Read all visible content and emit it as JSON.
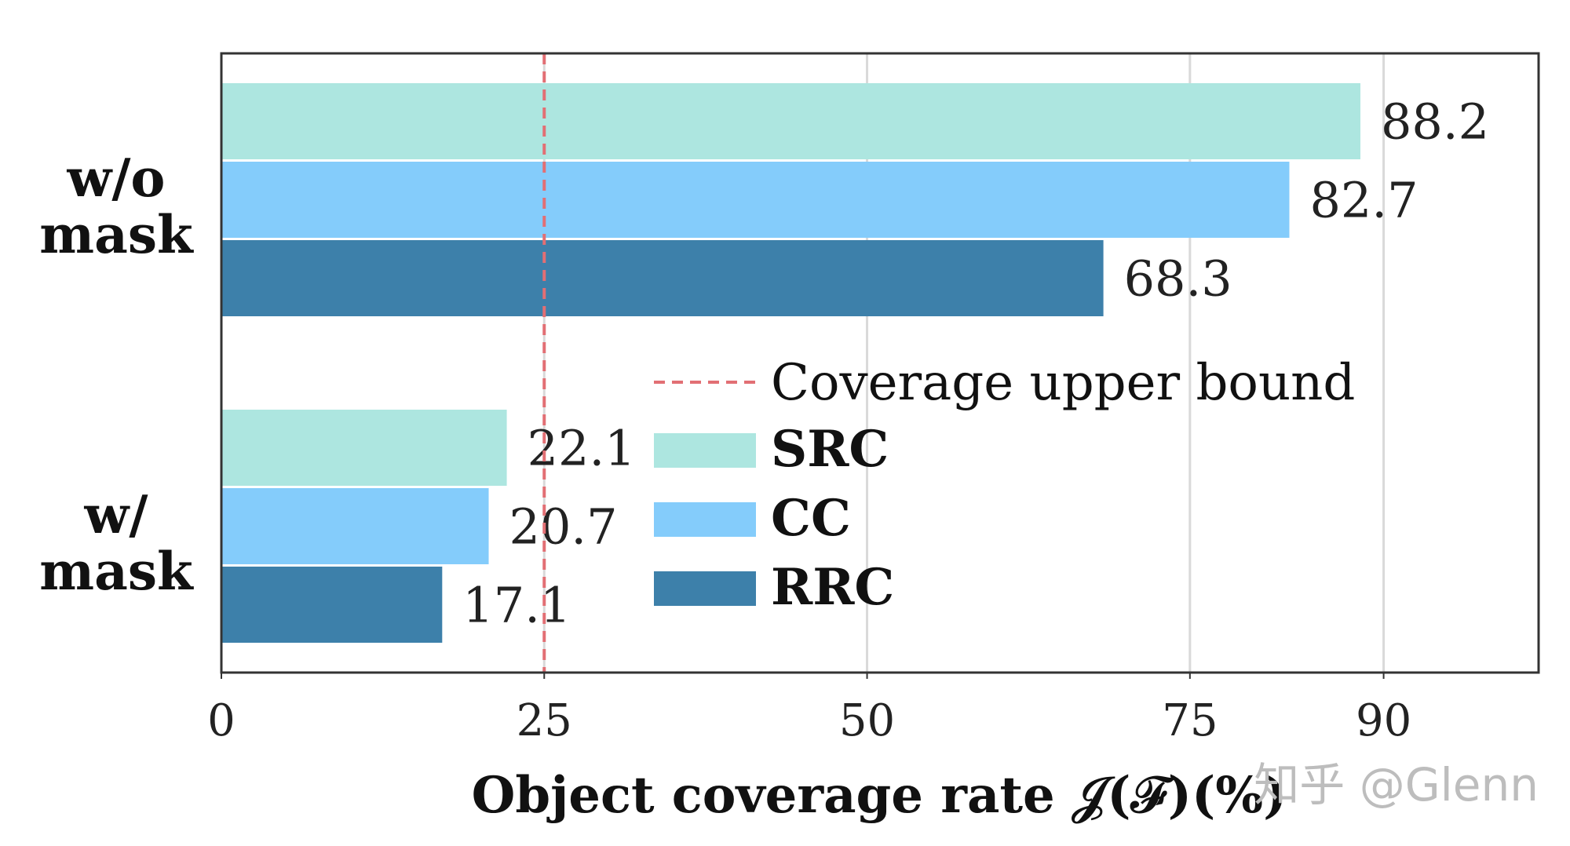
{
  "chart_data": {
    "type": "bar",
    "orientation": "horizontal",
    "categories": [
      "w/o mask",
      "w/ mask"
    ],
    "category_lines": [
      [
        "w/o",
        "mask"
      ],
      [
        "w/",
        "mask"
      ]
    ],
    "series": [
      {
        "name": "SRC",
        "color": "#ade6e0",
        "values": [
          88.2,
          22.1
        ]
      },
      {
        "name": "CC",
        "color": "#84ccfb",
        "values": [
          82.7,
          20.7
        ]
      },
      {
        "name": "RRC",
        "color": "#3d80aa",
        "values": [
          68.3,
          17.1
        ]
      }
    ],
    "value_labels": [
      [
        "88.2",
        "22.1"
      ],
      [
        "82.7",
        "20.7"
      ],
      [
        "68.3",
        "17.1"
      ]
    ],
    "xticks": [
      0,
      25,
      50,
      75,
      90
    ],
    "xlim": [
      0,
      102
    ],
    "xlabel": "Object coverage rate 𝒥(ℱ)(%)",
    "reference_line": {
      "value": 25,
      "label": "Coverage upper bound",
      "color": "#e26f74",
      "style": "dashed"
    },
    "grid": "vertical",
    "legend_position": "center-right"
  },
  "watermark": "知乎 @Glenn"
}
